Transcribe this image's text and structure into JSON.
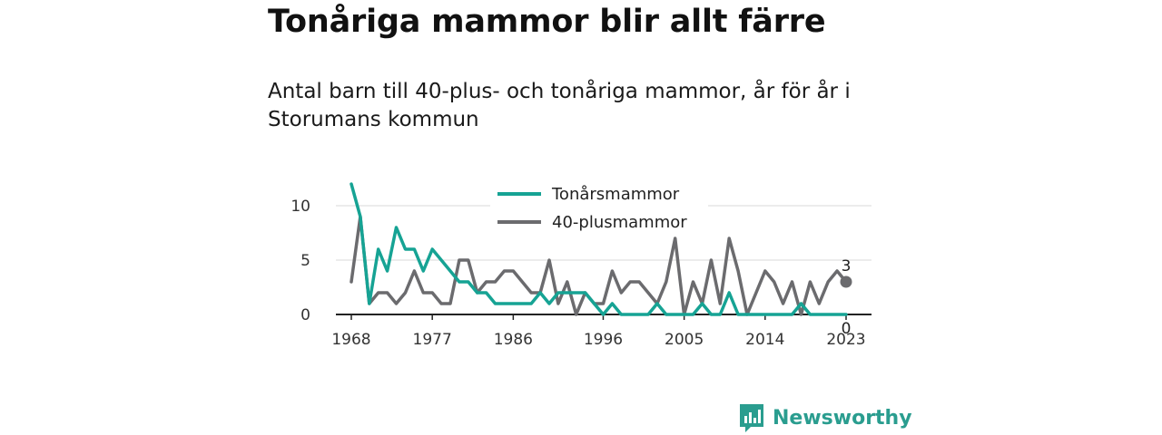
{
  "title": "Tonåriga mammor blir allt färre",
  "subtitle": "Antal barn till 40-plus- och tonåriga mammor, år för år i Storumans kommun",
  "brand": {
    "name": "Newsworthy",
    "icon": "newsworthy-logo-icon"
  },
  "colors": {
    "teen": "#16a394",
    "forty": "#6b6b6e",
    "grid": "#d9d9d9",
    "axis": "#222222",
    "brand": "#2a9d8f"
  },
  "chart_data": {
    "type": "line",
    "title": "",
    "xlabel": "",
    "ylabel": "",
    "xlim": [
      1968,
      2023
    ],
    "ylim": [
      0,
      12
    ],
    "x_ticks": [
      1968,
      1977,
      1986,
      1996,
      2005,
      2014,
      2023
    ],
    "y_ticks": [
      0,
      5,
      10
    ],
    "grid": true,
    "legend_position": "top-center",
    "x": [
      1968,
      1969,
      1970,
      1971,
      1972,
      1973,
      1974,
      1975,
      1976,
      1977,
      1978,
      1979,
      1980,
      1981,
      1982,
      1983,
      1984,
      1985,
      1986,
      1987,
      1988,
      1989,
      1990,
      1991,
      1992,
      1993,
      1994,
      1995,
      1996,
      1997,
      1998,
      1999,
      2000,
      2001,
      2002,
      2003,
      2004,
      2005,
      2006,
      2007,
      2008,
      2009,
      2010,
      2011,
      2012,
      2013,
      2014,
      2015,
      2016,
      2017,
      2018,
      2019,
      2020,
      2021,
      2022,
      2023
    ],
    "series": [
      {
        "name": "Tonårsmammor",
        "color": "#16a394",
        "values": [
          12,
          9,
          1,
          6,
          4,
          8,
          6,
          6,
          4,
          6,
          5,
          4,
          3,
          3,
          2,
          2,
          1,
          1,
          1,
          1,
          1,
          2,
          1,
          2,
          2,
          2,
          2,
          1,
          0,
          1,
          0,
          0,
          0,
          0,
          1,
          0,
          0,
          0,
          0,
          1,
          0,
          0,
          2,
          0,
          0,
          0,
          0,
          0,
          0,
          0,
          1,
          0,
          0,
          0,
          0,
          0
        ],
        "end_label": "0"
      },
      {
        "name": "40-plusmammor",
        "color": "#6b6b6e",
        "values": [
          3,
          9,
          1,
          2,
          2,
          1,
          2,
          4,
          2,
          2,
          1,
          1,
          5,
          5,
          2,
          3,
          3,
          4,
          4,
          3,
          2,
          2,
          5,
          1,
          3,
          0,
          2,
          1,
          1,
          4,
          2,
          3,
          3,
          2,
          1,
          3,
          7,
          0,
          3,
          1,
          5,
          1,
          7,
          4,
          0,
          2,
          4,
          3,
          1,
          3,
          0,
          3,
          1,
          3,
          4,
          3
        ],
        "end_label": "3"
      }
    ]
  }
}
